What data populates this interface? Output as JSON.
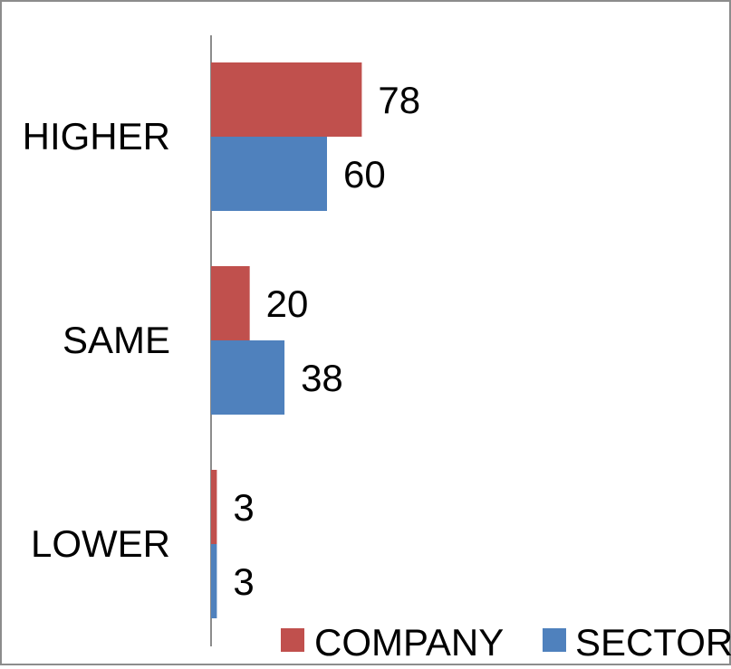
{
  "chart_data": {
    "type": "bar",
    "orientation": "horizontal",
    "categories": [
      "HIGHER",
      "SAME",
      "LOWER"
    ],
    "series": [
      {
        "name": "COMPANY",
        "values": [
          78,
          20,
          3
        ],
        "color": "#c0504d"
      },
      {
        "name": "SECTOR",
        "values": [
          60,
          38,
          3
        ],
        "color": "#4f81bd"
      }
    ],
    "data_labels": true,
    "xlim": [
      0,
      150
    ],
    "grid": false,
    "legend": {
      "position": "bottom-right",
      "entries": [
        "COMPANY",
        "SECTOR"
      ]
    }
  }
}
